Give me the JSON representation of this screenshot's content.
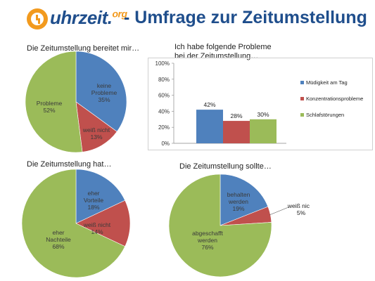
{
  "header": {
    "logo_text": "uhrzeit.",
    "logo_suffix": "org",
    "title": "- Umfrage zur Zeitumstellung"
  },
  "colors": {
    "blue": "#4f81bd",
    "red": "#c0504d",
    "green": "#9bbb59",
    "title": "#1f4e8c",
    "logo_orange": "#f29a1e"
  },
  "chart_data": [
    {
      "type": "pie",
      "title": "Die Zeitumstellung bereitet mir…",
      "slices": [
        {
          "label": "keine\nProbleme",
          "value": 35,
          "pct": "35%",
          "color": "#4f81bd"
        },
        {
          "label": "weiß nicht",
          "value": 13,
          "pct": "13%",
          "color": "#c0504d"
        },
        {
          "label": "Probleme",
          "value": 52,
          "pct": "52%",
          "color": "#9bbb59"
        }
      ]
    },
    {
      "type": "bar",
      "title": "Ich habe folgende Probleme\nbei der Zeitumstellung…",
      "series": [
        {
          "name": "Müdigkeit am Tag",
          "value": 42,
          "label": "42%",
          "color": "#4f81bd"
        },
        {
          "name": "Konzentrationsprobleme",
          "value": 28,
          "label": "28%",
          "color": "#c0504d"
        },
        {
          "name": "Schlafstörungen",
          "value": 30,
          "label": "30%",
          "color": "#9bbb59"
        }
      ],
      "ylim": [
        0,
        100
      ],
      "yticks": [
        "0%",
        "20%",
        "40%",
        "60%",
        "80%",
        "100%"
      ],
      "legend": "right"
    },
    {
      "type": "pie",
      "title": "Die Zeitumstellung hat…",
      "slices": [
        {
          "label": "eher\nVorteile",
          "value": 18,
          "pct": "18%",
          "color": "#4f81bd"
        },
        {
          "label": "weiß nicht",
          "value": 14,
          "pct": "14%",
          "color": "#c0504d"
        },
        {
          "label": "eher\nNachteile",
          "value": 68,
          "pct": "68%",
          "color": "#9bbb59"
        }
      ]
    },
    {
      "type": "pie",
      "title": "Die Zeitumstellung sollte…",
      "slices": [
        {
          "label": "behalten\nwerden",
          "value": 19,
          "pct": "19%",
          "color": "#4f81bd"
        },
        {
          "label": "weiß nicht",
          "value": 5,
          "pct": "5%",
          "color": "#c0504d"
        },
        {
          "label": "abgeschafft\nwerden",
          "value": 76,
          "pct": "76%",
          "color": "#9bbb59"
        }
      ]
    }
  ]
}
